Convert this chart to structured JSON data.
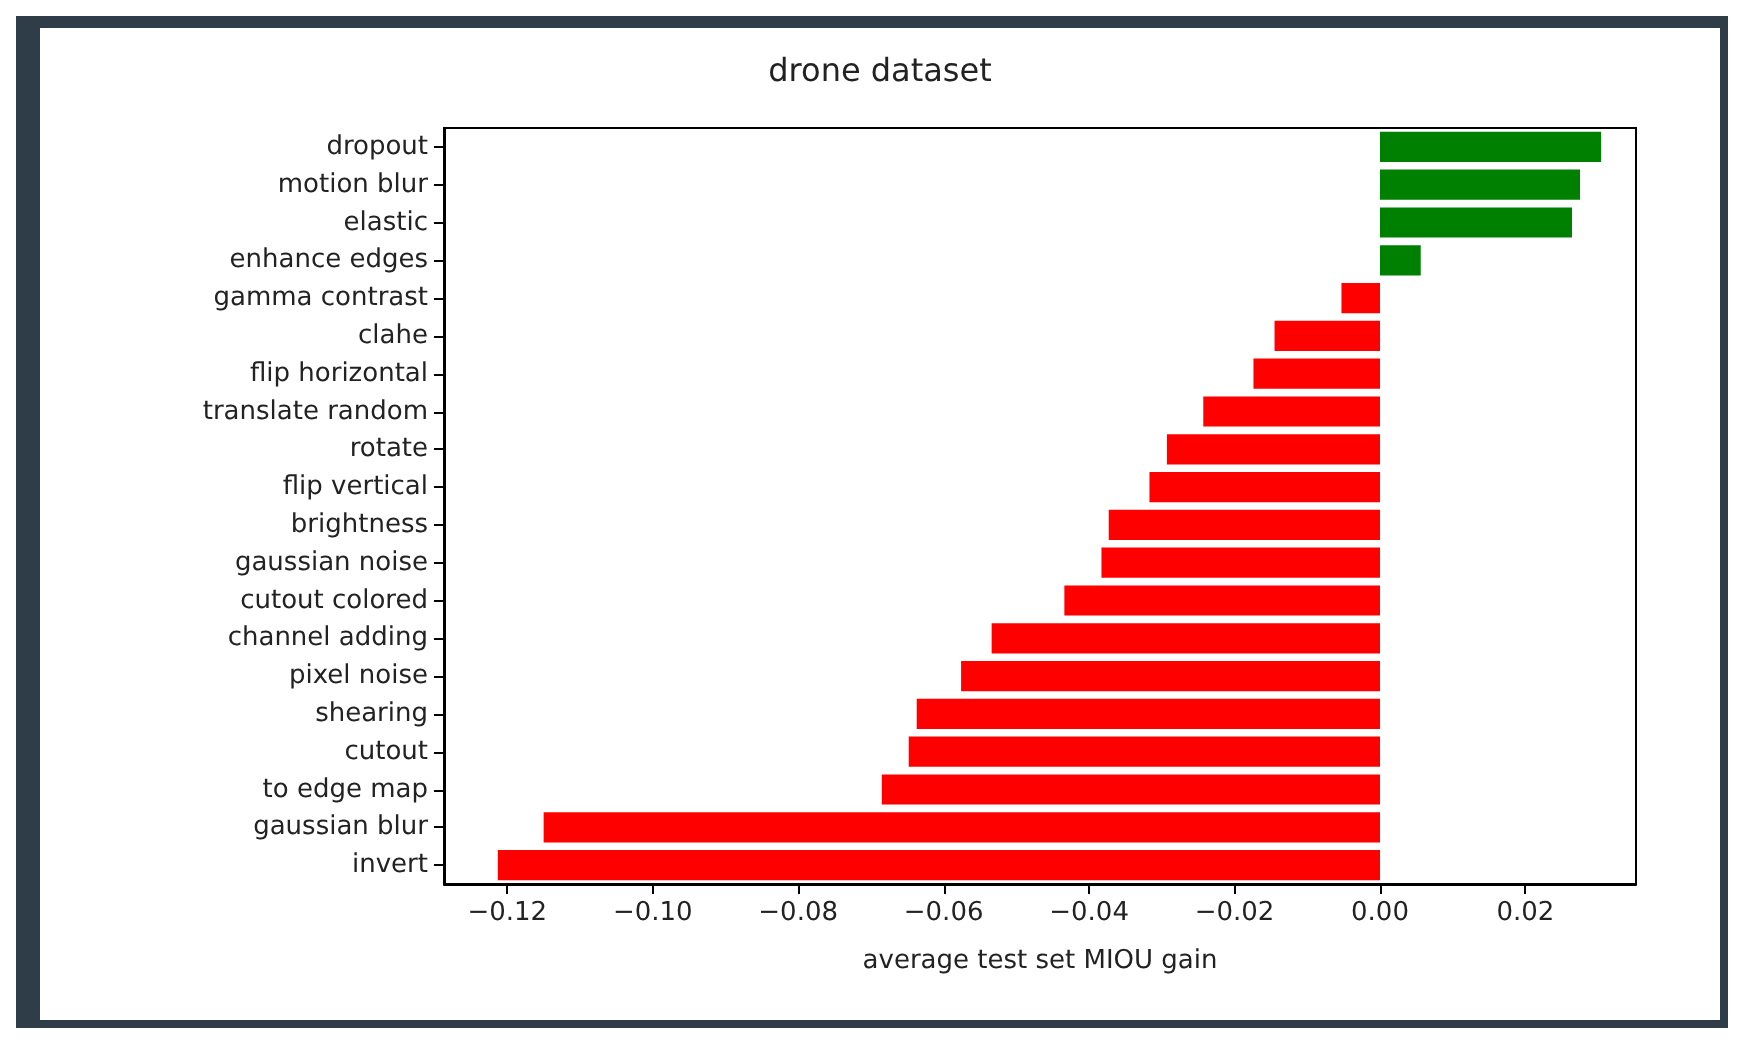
{
  "chart_data": {
    "type": "bar",
    "orientation": "horizontal",
    "title": "drone dataset",
    "xlabel": "average test set MIOU gain",
    "categories": [
      "dropout",
      "motion blur",
      "elastic",
      "enhance edges",
      "gamma contrast",
      "clahe",
      "flip horizontal",
      "translate random",
      "rotate",
      "flip vertical",
      "brightness",
      "gaussian noise",
      "cutout colored",
      "channel adding",
      "pixel noise",
      "shearing",
      "cutout",
      "to edge map",
      "gaussian blur",
      "invert"
    ],
    "values": [
      0.0304,
      0.0275,
      0.0264,
      0.0056,
      -0.0053,
      -0.0145,
      -0.0174,
      -0.0243,
      -0.0293,
      -0.0317,
      -0.0373,
      -0.0383,
      -0.0434,
      -0.0534,
      -0.0576,
      -0.0637,
      -0.0648,
      -0.0685,
      -0.115,
      -0.1213
    ],
    "colors": [
      "#008000",
      "#008000",
      "#008000",
      "#008000",
      "#ff0000",
      "#ff0000",
      "#ff0000",
      "#ff0000",
      "#ff0000",
      "#ff0000",
      "#ff0000",
      "#ff0000",
      "#ff0000",
      "#ff0000",
      "#ff0000",
      "#ff0000",
      "#ff0000",
      "#ff0000",
      "#ff0000",
      "#ff0000"
    ],
    "xlim": [
      -0.1287,
      0.0352
    ],
    "xticks": [
      {
        "value": -0.12,
        "label": "−0.12"
      },
      {
        "value": -0.1,
        "label": "−0.10"
      },
      {
        "value": -0.08,
        "label": "−0.08"
      },
      {
        "value": -0.06,
        "label": "−0.06"
      },
      {
        "value": -0.04,
        "label": "−0.04"
      },
      {
        "value": -0.02,
        "label": "−0.02"
      },
      {
        "value": 0,
        "label": "0.00"
      },
      {
        "value": 0.02,
        "label": "0.02"
      }
    ],
    "grid": false
  }
}
